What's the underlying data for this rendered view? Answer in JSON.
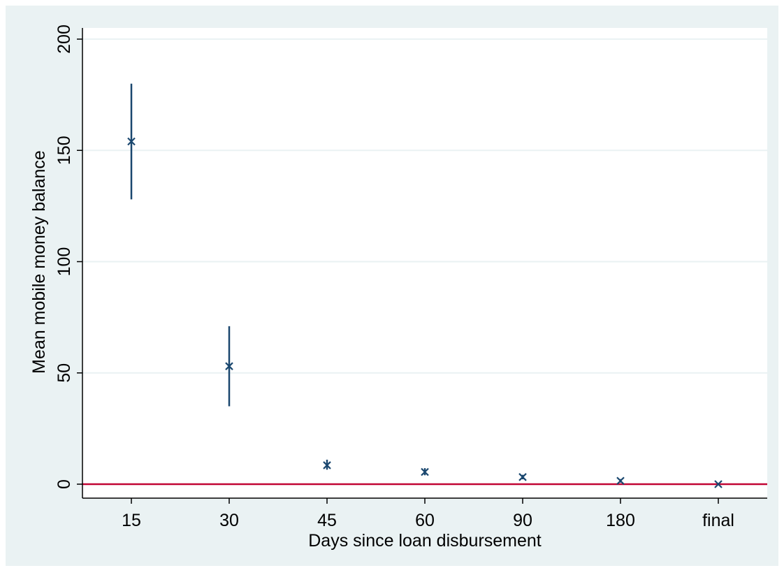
{
  "chart_data": {
    "type": "scatter",
    "title": "",
    "xlabel": "Days since loan disbursement",
    "ylabel": "Mean mobile money balance",
    "categories": [
      "15",
      "30",
      "45",
      "60",
      "90",
      "180",
      "final"
    ],
    "series": [
      {
        "values": [
          154,
          53,
          8.5,
          5.5,
          3.2,
          1.5,
          0
        ],
        "ci_low": [
          128,
          35,
          6.5,
          4,
          2.2,
          0.7,
          -0.5
        ],
        "ci_high": [
          180,
          71,
          11,
          7.2,
          4.2,
          2.3,
          0.5
        ]
      }
    ],
    "ylim": [
      -6,
      205
    ],
    "yticks": [
      0,
      50,
      100,
      150,
      200
    ],
    "reference_line_y": 0,
    "grid": true,
    "colors": {
      "outer_background": "#eaf2f3",
      "plot_background": "#ffffff",
      "gridline": "#eaf2f3",
      "marker": "#1a476f",
      "reference_line": "#c10534"
    }
  }
}
